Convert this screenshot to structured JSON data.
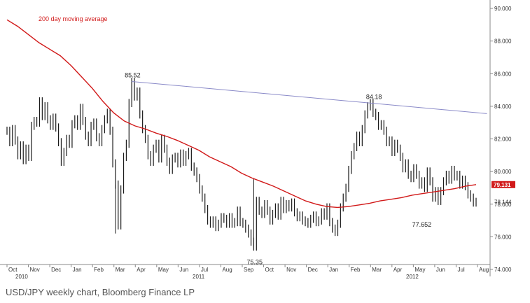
{
  "caption": "USD/JPY weekly chart, Bloomberg Finance LP",
  "chart_data": {
    "type": "line",
    "series": [
      {
        "values": [
          82.5,
          81.8,
          82.6,
          81.9,
          81.0,
          81.6,
          80.7,
          81.4,
          80.9,
          82.8,
          83.1,
          83.0,
          84.3,
          83.4,
          84.0,
          83.2,
          82.8,
          83.3,
          82.7,
          81.8,
          80.6,
          81.2,
          82.0,
          81.7,
          82.9,
          83.2,
          82.8,
          83.9,
          83.1,
          82.2,
          81.8,
          82.8,
          83.0,
          82.1,
          81.8,
          82.6,
          83.2,
          83.6,
          82.5,
          80.5,
          79.2,
          76.7,
          78.9,
          80.9,
          81.7,
          84.2,
          85.5,
          84.6,
          84.9,
          83.5,
          82.6,
          82.0,
          81.0,
          80.6,
          81.4,
          81.7,
          80.8,
          82.0,
          81.4,
          80.6,
          80.1,
          80.8,
          80.9,
          80.5,
          81.1,
          80.6,
          81.0,
          81.2,
          80.3,
          80.0,
          79.6,
          78.9,
          78.4,
          77.7,
          77.0,
          76.8,
          77.0,
          76.6,
          76.8,
          77.2,
          77.1,
          76.8,
          77.2,
          76.8,
          76.9,
          77.6,
          76.9,
          76.8,
          76.5,
          76.2,
          75.7,
          75.4,
          78.2,
          77.6,
          77.4,
          78.0,
          77.6,
          77.0,
          77.4,
          77.8,
          77.3,
          78.2,
          77.7,
          78.0,
          77.8,
          78.1,
          77.5,
          77.2,
          77.3,
          77.0,
          76.9,
          76.8,
          77.1,
          77.3,
          76.9,
          77.0,
          77.5,
          77.3,
          77.8,
          76.9,
          76.5,
          76.3,
          76.8,
          77.8,
          78.4,
          79.0,
          80.1,
          81.0,
          81.5,
          82.2,
          81.8,
          82.6,
          83.5,
          84.0,
          84.2,
          83.6,
          83.4,
          82.8,
          82.9,
          82.5,
          81.8,
          81.9,
          81.2,
          81.7,
          81.4,
          80.9,
          80.2,
          80.5,
          79.8,
          79.6,
          80.2,
          79.8,
          79.2,
          79.4,
          79.0,
          80.0,
          79.4,
          78.4,
          78.8,
          78.2,
          78.8,
          79.4,
          79.8,
          79.5,
          80.1,
          79.7,
          79.8,
          79.2,
          79.5,
          79.1,
          78.6,
          78.4,
          78.1,
          78.14
        ]
      }
    ],
    "moving_average": {
      "name": "200 day moving average",
      "values": [
        89.3,
        88.9,
        88.4,
        87.9,
        87.5,
        87.1,
        86.5,
        85.8,
        85.1,
        84.3,
        83.6,
        83.1,
        82.8,
        82.6,
        82.35,
        82.15,
        81.9,
        81.6,
        81.3,
        80.9,
        80.6,
        80.3,
        79.9,
        79.6,
        79.35,
        79.1,
        78.8,
        78.5,
        78.2,
        78.0,
        77.85,
        77.8,
        77.85,
        77.95,
        78.05,
        78.2,
        78.3,
        78.4,
        78.55,
        78.65,
        78.75,
        78.85,
        78.95,
        79.1,
        79.2
      ]
    },
    "annotations": [
      {
        "text": "85.52",
        "x": 46,
        "y": 85.52
      },
      {
        "text": "84.18",
        "x": 135,
        "y": 84.18
      },
      {
        "text": "75.35",
        "x": 91,
        "y": 75.35
      },
      {
        "text": "77.652",
        "x": 152,
        "y": 77.652
      }
    ],
    "trendline": {
      "from": [
        46,
        85.52
      ],
      "to": [
        177,
        83.55
      ]
    },
    "last_value_tag": "79.131",
    "last_price_label": "78.144",
    "ylim": [
      74,
      90
    ],
    "yticks": [
      "74.000",
      "76.000",
      "78.000",
      "80.000",
      "82.000",
      "84.000",
      "86.000",
      "88.000",
      "90.000"
    ],
    "month_labels": [
      "Oct",
      "Nov",
      "Dec",
      "Jan",
      "Feb",
      "Mar",
      "Apr",
      "May",
      "Jun",
      "Jul",
      "Aug",
      "Sep",
      "Oct",
      "Nov",
      "Dec",
      "Jan",
      "Feb",
      "Mar",
      "Apr",
      "May",
      "Jun",
      "Jul",
      "Aug"
    ],
    "year_labels": [
      "2010",
      "2011",
      "2012"
    ],
    "colors": {
      "price": "#1a1a1a",
      "ma": "#d11919",
      "trend": "#8a8ac8",
      "tag": "#d11919",
      "grid": "#cfcfcf"
    },
    "grid": false,
    "legend": "none"
  }
}
